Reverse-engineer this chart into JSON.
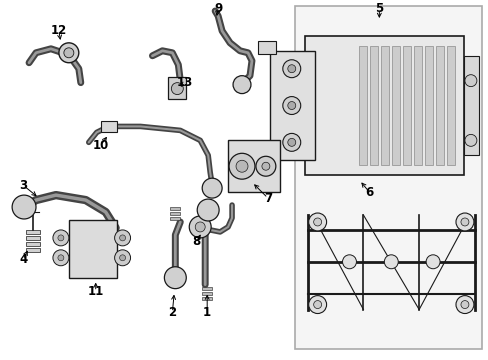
{
  "bg_color": "#ffffff",
  "fig_width": 4.89,
  "fig_height": 3.6,
  "dpi": 100,
  "line_color": "#1a1a1a",
  "gray_fill": "#d8d8d8",
  "light_fill": "#eeeeee",
  "box_edge": "#888888"
}
